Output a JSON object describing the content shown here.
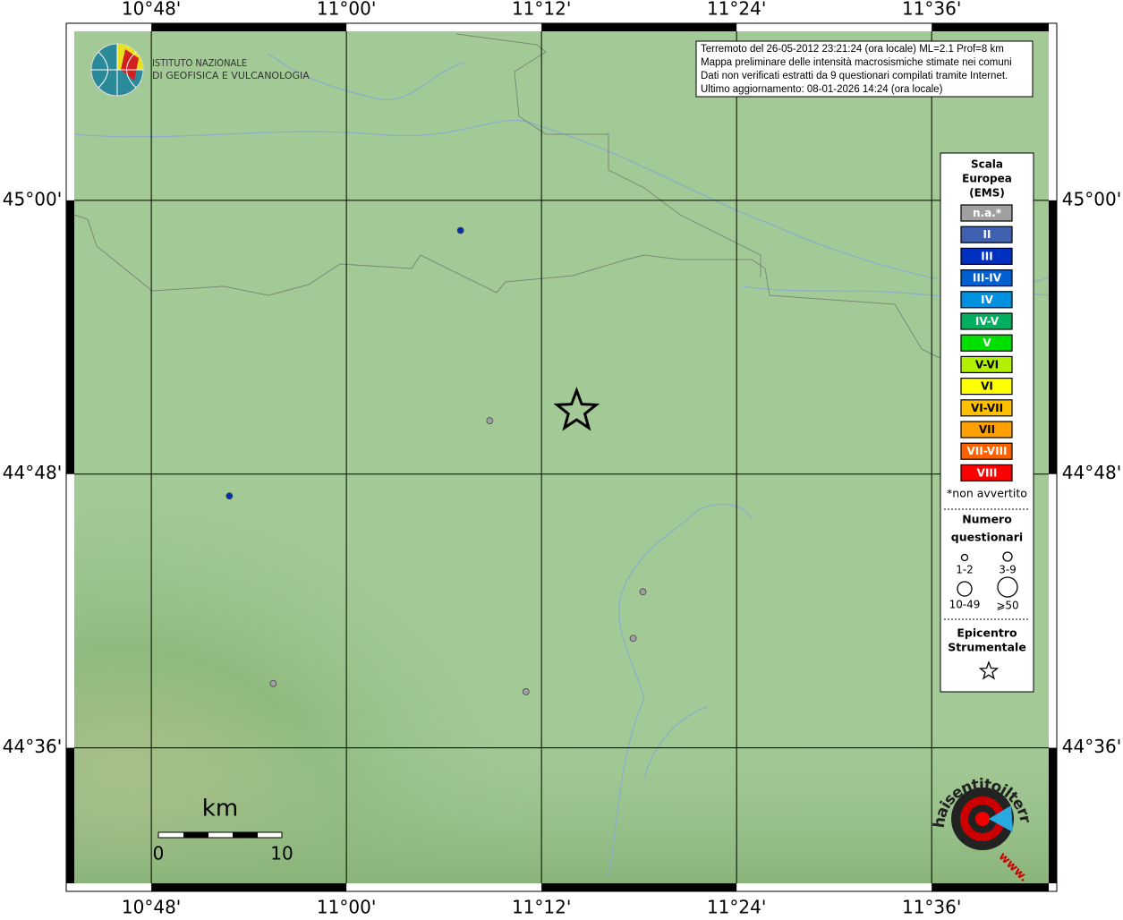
{
  "map": {
    "xlim": [
      10.721,
      11.72
    ],
    "ylim": [
      44.501,
      45.1235
    ],
    "xticks": [
      {
        "value": 10.8,
        "label": "10°48'"
      },
      {
        "value": 11.0,
        "label": "11°00'"
      },
      {
        "value": 11.2,
        "label": "11°12'"
      },
      {
        "value": 11.4,
        "label": "11°24'"
      },
      {
        "value": 11.6,
        "label": "11°36'"
      }
    ],
    "yticks": [
      {
        "value": 45.0,
        "label": "45°00'"
      },
      {
        "value": 44.8,
        "label": "44°48'"
      },
      {
        "value": 44.6,
        "label": "44°36'"
      }
    ],
    "grid": true,
    "points": [
      {
        "lon": 11.117,
        "lat": 44.978,
        "color": "#0030b0"
      },
      {
        "lon": 10.88,
        "lat": 44.784,
        "color": "#0030b0"
      },
      {
        "lon": 11.147,
        "lat": 44.839,
        "color": "#a0a0a0"
      },
      {
        "lon": 11.304,
        "lat": 44.714,
        "color": "#a0a0a0"
      },
      {
        "lon": 11.294,
        "lat": 44.68,
        "color": "#a0a0a0"
      },
      {
        "lon": 10.925,
        "lat": 44.647,
        "color": "#a0a0a0"
      },
      {
        "lon": 11.184,
        "lat": 44.641,
        "color": "#a0a0a0"
      }
    ],
    "epicenter": {
      "lon": 11.236,
      "lat": 44.846
    }
  },
  "info": [
    "Terremoto del 26-05-2012 23:21:24 (ora locale) ML=2.1 Prof=8 km",
    "Mappa preliminare delle intensità macrosismiche stimate nei comuni",
    "Dati non verificati estratti da 9 questionari compilati tramite Internet.",
    "Ultimo aggiornamento: 08-01-2026 14:24 (ora locale)"
  ],
  "logo": [
    "ISTITUTO NAZIONALE",
    "DI GEOFISICA E VULCANOLOGIA"
  ],
  "legend": {
    "title": [
      "Scala",
      "Europea",
      "(EMS)"
    ],
    "items": [
      {
        "label": "n.a.*",
        "color": "#a0a0a0"
      },
      {
        "label": "II",
        "color": "#4060b0"
      },
      {
        "label": "III",
        "color": "#0030c0"
      },
      {
        "label": "III-IV",
        "color": "#0060d0"
      },
      {
        "label": "IV",
        "color": "#0090e0"
      },
      {
        "label": "IV-V",
        "color": "#00b060"
      },
      {
        "label": "V",
        "color": "#00e000"
      },
      {
        "label": "V-VI",
        "color": "#b0f000"
      },
      {
        "label": "VI",
        "color": "#ffff00"
      },
      {
        "label": "VI-VII",
        "color": "#ffc000"
      },
      {
        "label": "VII",
        "color": "#ffa000"
      },
      {
        "label": "VII-VIII",
        "color": "#ff6000"
      },
      {
        "label": "VIII",
        "color": "#ff0000"
      }
    ],
    "note": "*non avvertito",
    "count_title": [
      "Numero",
      "questionari"
    ],
    "sizes": [
      "1-2",
      "3-9",
      "10-49",
      "⩾50"
    ],
    "epi_title": [
      "Epicentro",
      "Strumentale"
    ]
  },
  "scalebar": {
    "unit": "km",
    "labels": [
      "0",
      "10"
    ]
  },
  "badge": {
    "text": "haisentitoilterremoto.it",
    "www": "www."
  }
}
